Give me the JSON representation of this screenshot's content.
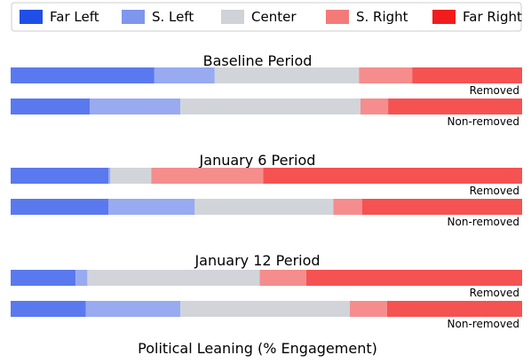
{
  "chart_data": {
    "type": "bar",
    "orientation": "horizontal",
    "stacked": true,
    "normalized_percent": true,
    "xlabel": "Political Leaning (% Engagement)",
    "legend": {
      "placement": "top",
      "entries": [
        {
          "name": "Far Left",
          "color": "#1f4fe6"
        },
        {
          "name": "S. Left",
          "color": "#7f96ee"
        },
        {
          "name": "Center",
          "color": "#cfd3d8"
        },
        {
          "name": "S. Right",
          "color": "#f47a7a"
        },
        {
          "name": "Far Right",
          "color": "#f21c1c"
        }
      ]
    },
    "bar_colors": [
      "#5a79ef",
      "#98aaf0",
      "#d1d5da",
      "#f58d8d",
      "#f55252"
    ],
    "groups": [
      {
        "title": "Baseline Period",
        "bars": [
          {
            "label": "Removed",
            "values": [
              28.1,
              11.8,
              28.2,
              10.4,
              21.5
            ]
          },
          {
            "label": "Non-removed",
            "values": [
              15.5,
              17.7,
              35.2,
              5.4,
              26.2
            ]
          }
        ]
      },
      {
        "title": "January 6 Period",
        "bars": [
          {
            "label": "Removed",
            "values": [
              19.1,
              0.4,
              8.0,
              21.9,
              50.6
            ]
          },
          {
            "label": "Non-removed",
            "values": [
              19.1,
              16.9,
              27.1,
              5.6,
              31.3
            ]
          }
        ]
      },
      {
        "title": "January 12 Period",
        "bars": [
          {
            "label": "Removed",
            "values": [
              12.7,
              2.3,
              33.7,
              9.1,
              42.2
            ]
          },
          {
            "label": "Non-removed",
            "values": [
              14.7,
              18.5,
              33.1,
              7.3,
              26.4
            ]
          }
        ]
      }
    ]
  }
}
